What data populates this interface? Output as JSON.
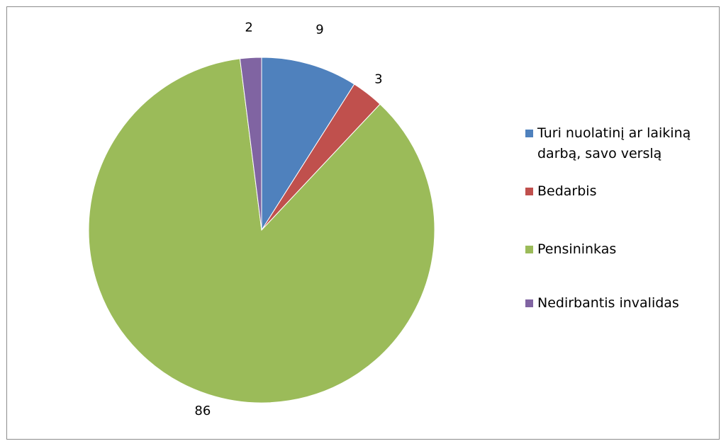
{
  "chart_data": {
    "type": "pie",
    "title": "",
    "categories": [
      "Turi nuolatinį ar laikiną darbą, savo verslą",
      "Bedarbis",
      "Pensininkas",
      "Nedirbantis invalidas"
    ],
    "values": [
      9,
      3,
      86,
      2
    ],
    "data_labels": [
      "9",
      "3",
      "86",
      "2"
    ],
    "colors": [
      "#4f81bd",
      "#c0504d",
      "#9bbb59",
      "#8064a2"
    ],
    "legend_position": "right",
    "start_angle": "12 o'clock",
    "direction": "clockwise"
  },
  "legend": {
    "items": [
      {
        "label": "Turi nuolatinį ar laikiną darbą, savo verslą",
        "color": "#4f81bd"
      },
      {
        "label": "Bedarbis",
        "color": "#c0504d"
      },
      {
        "label": "Pensininkas",
        "color": "#9bbb59"
      },
      {
        "label": "Nedirbantis invalidas",
        "color": "#8064a2"
      }
    ]
  }
}
